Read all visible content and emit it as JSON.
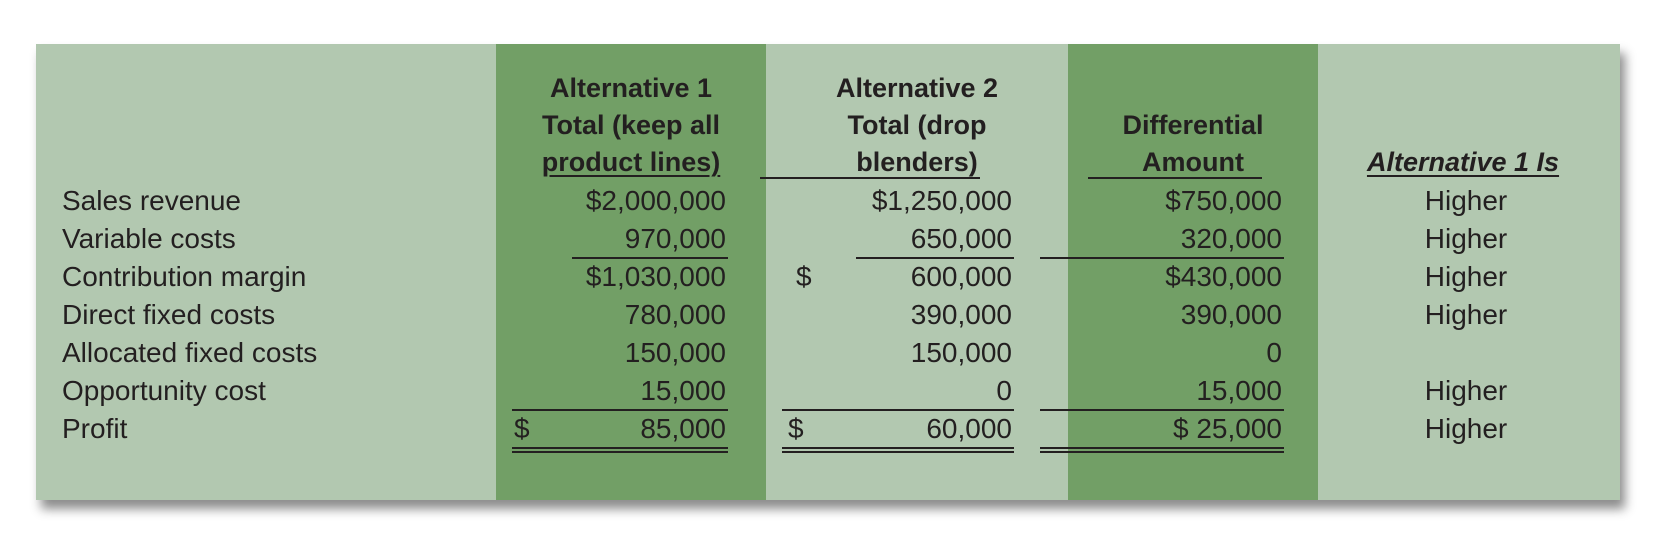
{
  "headers": {
    "alt1": [
      "Alternative 1",
      "Total (keep all",
      "product lines)"
    ],
    "alt2": [
      "Alternative 2",
      "Total (drop",
      "blenders)"
    ],
    "diff": [
      "Differential",
      "Amount"
    ],
    "comp": "Alternative 1 Is"
  },
  "rows": [
    {
      "label": "Sales revenue",
      "alt1": "$2,000,000",
      "alt2": "$1,250,000",
      "diff": "$750,000",
      "comp": "Higher"
    },
    {
      "label": "Variable costs",
      "alt1": "970,000",
      "alt2": "650,000",
      "diff": "320,000",
      "comp": "Higher"
    },
    {
      "label": "Contribution margin",
      "alt1": "$1,030,000",
      "alt2_sign": "$",
      "alt2": "600,000",
      "diff": "$430,000",
      "comp": "Higher"
    },
    {
      "label": "Direct fixed costs",
      "alt1": "780,000",
      "alt2": "390,000",
      "diff": "390,000",
      "comp": "Higher"
    },
    {
      "label": "Allocated fixed costs",
      "alt1": "150,000",
      "alt2": "150,000",
      "diff": "0",
      "comp": ""
    },
    {
      "label": "Opportunity cost",
      "alt1": "15,000",
      "alt2": "0",
      "diff": "15,000",
      "comp": "Higher"
    },
    {
      "label": "Profit",
      "alt1_sign": "$",
      "alt1": "85,000",
      "alt2_sign": "$",
      "alt2": "60,000",
      "diff": "$ 25,000",
      "comp": "Higher"
    }
  ],
  "colors": {
    "panel": "#b2c8b0",
    "highlight_column": "#729f66",
    "text": "#231f20"
  }
}
